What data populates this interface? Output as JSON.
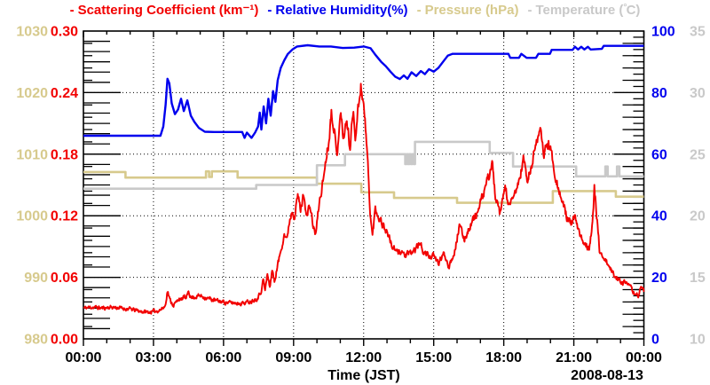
{
  "legend": {
    "items": [
      {
        "id": "scattering",
        "dash": "-",
        "label": "Scattering Coefficient (km⁻¹)",
        "color": "#f20000"
      },
      {
        "id": "humidity",
        "dash": "-",
        "label": "Relative Humidity(%)",
        "color": "#0000ee"
      },
      {
        "id": "pressure",
        "dash": "-",
        "label": "Pressure (hPa)",
        "color": "#d7ca8d"
      },
      {
        "id": "temperature",
        "dash": "-",
        "label_pre": "Temperature (",
        "label_deg": "°",
        "label_post": "C)",
        "color": "#c9c9c9"
      }
    ]
  },
  "chart_data": {
    "type": "line",
    "xlabel": "Time (JST)",
    "date_label": "2008-08-13",
    "grid": {
      "style": "dotted",
      "color": "#000000"
    },
    "x_axis": {
      "range": [
        0,
        24
      ],
      "tick_values": [
        0,
        3,
        6,
        9,
        12,
        15,
        18,
        21,
        24
      ],
      "tick_labels": [
        "00:00",
        "03:00",
        "06:00",
        "09:00",
        "12:00",
        "15:00",
        "18:00",
        "21:00",
        "00:00"
      ],
      "minor_step": 1
    },
    "y_axes": [
      {
        "id": "scattering",
        "label": "Scattering Coefficient (km⁻¹)",
        "side": "left-inner",
        "color": "#f20000",
        "range": [
          0,
          0.3
        ],
        "tick_values": [
          0,
          0.06,
          0.12,
          0.18,
          0.24,
          0.3
        ],
        "tick_labels": [
          "0.00",
          "0.06",
          "0.12",
          "0.18",
          "0.24",
          "0.30"
        ],
        "minor_step": 0.01
      },
      {
        "id": "pressure",
        "label": "Pressure (hPa)",
        "side": "left-outer",
        "color": "#d7ca8d",
        "range": [
          980,
          1030
        ],
        "tick_values": [
          980,
          990,
          1000,
          1010,
          1020,
          1030
        ],
        "tick_labels": [
          "980",
          "990",
          "1000",
          "1010",
          "1020",
          "1030"
        ],
        "minor_step": 2
      },
      {
        "id": "humidity",
        "label": "Relative Humidity(%)",
        "side": "right-inner",
        "color": "#0000ee",
        "range": [
          0,
          100
        ],
        "tick_values": [
          0,
          20,
          40,
          60,
          80,
          100
        ],
        "tick_labels": [
          "0",
          "20",
          "40",
          "60",
          "80",
          "100"
        ],
        "minor_step": 2
      },
      {
        "id": "temperature",
        "label": "Temperature (°C)",
        "side": "right-outer",
        "color": "#c9c9c9",
        "range": [
          10,
          35
        ],
        "tick_values": [
          10,
          15,
          20,
          25,
          30,
          35
        ],
        "tick_labels": [
          "10",
          "15",
          "20",
          "25",
          "30",
          "35"
        ],
        "minor_step": 1
      }
    ],
    "series": [
      {
        "id": "pressure",
        "axis": "pressure",
        "style": "step",
        "color": "#d7ca8d",
        "width": 2.6,
        "points": [
          [
            0,
            1007.1
          ],
          [
            1.8,
            1006.2
          ],
          [
            5.25,
            1007.2
          ],
          [
            5.38,
            1006.3
          ],
          [
            5.5,
            1007.2
          ],
          [
            6.6,
            1006.2
          ],
          [
            10.0,
            1005.2
          ],
          [
            11.9,
            1003.8
          ],
          [
            13.3,
            1002.9
          ],
          [
            16.0,
            1002.1
          ],
          [
            20.1,
            1004.0
          ],
          [
            22.8,
            1003.1
          ],
          [
            24,
            1003.1
          ]
        ]
      },
      {
        "id": "temperature",
        "axis": "temperature",
        "style": "step",
        "color": "#c9c9c9",
        "width": 2.6,
        "points": [
          [
            0,
            22.2
          ],
          [
            7.4,
            22.5
          ],
          [
            10.0,
            24.1
          ],
          [
            11.2,
            25.0
          ],
          [
            13.78,
            24.2
          ],
          [
            13.84,
            25.0
          ],
          [
            13.9,
            24.2
          ],
          [
            13.96,
            25.0
          ],
          [
            14.02,
            24.2
          ],
          [
            14.08,
            25.0
          ],
          [
            14.14,
            24.2
          ],
          [
            14.2,
            26.0
          ],
          [
            17.4,
            25.1
          ],
          [
            18.4,
            24.0
          ],
          [
            21.1,
            23.2
          ],
          [
            22.35,
            24.0
          ],
          [
            22.45,
            23.2
          ],
          [
            22.85,
            24.0
          ],
          [
            22.95,
            23.2
          ],
          [
            24,
            23.2
          ]
        ]
      },
      {
        "id": "humidity",
        "axis": "humidity",
        "style": "line",
        "color": "#0000ee",
        "width": 2.4,
        "points": [
          [
            0,
            66
          ],
          [
            0.5,
            66
          ],
          [
            1,
            66
          ],
          [
            1.5,
            66
          ],
          [
            2,
            66
          ],
          [
            2.5,
            66
          ],
          [
            3,
            66
          ],
          [
            3.3,
            66
          ],
          [
            3.42,
            69
          ],
          [
            3.52,
            76
          ],
          [
            3.6,
            84.5
          ],
          [
            3.68,
            83
          ],
          [
            3.78,
            76.5
          ],
          [
            3.92,
            73
          ],
          [
            4.05,
            74.5
          ],
          [
            4.18,
            78
          ],
          [
            4.3,
            74
          ],
          [
            4.45,
            77.5
          ],
          [
            4.6,
            72.5
          ],
          [
            4.75,
            70.5
          ],
          [
            4.95,
            68.5
          ],
          [
            5.2,
            67.3
          ],
          [
            5.6,
            67.2
          ],
          [
            6.0,
            67.2
          ],
          [
            6.4,
            67.2
          ],
          [
            6.8,
            67.2
          ],
          [
            6.9,
            65.3
          ],
          [
            7.0,
            67
          ],
          [
            7.2,
            65.3
          ],
          [
            7.35,
            67
          ],
          [
            7.48,
            69
          ],
          [
            7.55,
            73.5
          ],
          [
            7.62,
            68
          ],
          [
            7.72,
            75.5
          ],
          [
            7.82,
            70
          ],
          [
            7.92,
            78
          ],
          [
            8.02,
            72.5
          ],
          [
            8.12,
            80.5
          ],
          [
            8.22,
            77
          ],
          [
            8.32,
            84
          ],
          [
            8.45,
            88
          ],
          [
            8.6,
            90.5
          ],
          [
            8.75,
            92.5
          ],
          [
            8.95,
            94
          ],
          [
            9.15,
            95
          ],
          [
            9.6,
            95.4
          ],
          [
            10.1,
            95
          ],
          [
            10.6,
            95
          ],
          [
            11.1,
            94.5
          ],
          [
            11.6,
            94.6
          ],
          [
            12.0,
            95
          ],
          [
            12.3,
            94.4
          ],
          [
            12.5,
            92.3
          ],
          [
            12.75,
            90
          ],
          [
            12.95,
            88.6
          ],
          [
            13.15,
            86.8
          ],
          [
            13.35,
            85.2
          ],
          [
            13.55,
            84.4
          ],
          [
            13.72,
            85.6
          ],
          [
            13.88,
            84.5
          ],
          [
            14.05,
            86.6
          ],
          [
            14.25,
            85.4
          ],
          [
            14.45,
            87
          ],
          [
            14.62,
            86
          ],
          [
            14.8,
            87.6
          ],
          [
            15.0,
            86.8
          ],
          [
            15.2,
            88
          ],
          [
            15.4,
            90
          ],
          [
            15.6,
            92
          ],
          [
            15.8,
            92.6
          ],
          [
            16.4,
            92.6
          ],
          [
            17.0,
            92.6
          ],
          [
            17.6,
            92.6
          ],
          [
            18.2,
            92.6
          ],
          [
            18.28,
            91.3
          ],
          [
            18.65,
            91.3
          ],
          [
            18.75,
            92.6
          ],
          [
            18.98,
            91.3
          ],
          [
            19.38,
            91.3
          ],
          [
            19.48,
            92.6
          ],
          [
            19.98,
            92.6
          ],
          [
            20.05,
            93.9
          ],
          [
            20.5,
            93.9
          ],
          [
            20.95,
            93.9
          ],
          [
            21.05,
            94.9
          ],
          [
            21.18,
            94
          ],
          [
            21.32,
            94.9
          ],
          [
            21.45,
            94
          ],
          [
            21.6,
            94.9
          ],
          [
            21.72,
            94
          ],
          [
            22.2,
            94.2
          ],
          [
            22.28,
            95.2
          ],
          [
            23.0,
            95.2
          ],
          [
            23.5,
            95.2
          ],
          [
            24,
            95.2
          ]
        ]
      },
      {
        "id": "scattering",
        "axis": "scattering",
        "style": "noisy-line",
        "color": "#f20000",
        "width": 1.9,
        "noise": {
          "seed": 11,
          "base": 0.002,
          "scale": 0.04,
          "samples": 1200
        },
        "points": [
          [
            0,
            0.03
          ],
          [
            0.4,
            0.031
          ],
          [
            0.8,
            0.03
          ],
          [
            1.2,
            0.031
          ],
          [
            1.6,
            0.03
          ],
          [
            2.0,
            0.029
          ],
          [
            2.4,
            0.027
          ],
          [
            2.8,
            0.026
          ],
          [
            3.1,
            0.027
          ],
          [
            3.35,
            0.029
          ],
          [
            3.5,
            0.032
          ],
          [
            3.6,
            0.047
          ],
          [
            3.7,
            0.038
          ],
          [
            3.85,
            0.033
          ],
          [
            4.0,
            0.036
          ],
          [
            4.1,
            0.04
          ],
          [
            4.2,
            0.037
          ],
          [
            4.3,
            0.042
          ],
          [
            4.4,
            0.038
          ],
          [
            4.5,
            0.048
          ],
          [
            4.6,
            0.04
          ],
          [
            4.75,
            0.041
          ],
          [
            4.95,
            0.042
          ],
          [
            5.15,
            0.041
          ],
          [
            5.4,
            0.039
          ],
          [
            5.7,
            0.037
          ],
          [
            6.0,
            0.036
          ],
          [
            6.3,
            0.035
          ],
          [
            6.6,
            0.035
          ],
          [
            6.9,
            0.035
          ],
          [
            7.2,
            0.037
          ],
          [
            7.45,
            0.04
          ],
          [
            7.6,
            0.046
          ],
          [
            7.7,
            0.058
          ],
          [
            7.78,
            0.047
          ],
          [
            7.88,
            0.063
          ],
          [
            7.98,
            0.05
          ],
          [
            8.08,
            0.068
          ],
          [
            8.18,
            0.055
          ],
          [
            8.28,
            0.068
          ],
          [
            8.38,
            0.078
          ],
          [
            8.5,
            0.092
          ],
          [
            8.6,
            0.103
          ],
          [
            8.7,
            0.096
          ],
          [
            8.82,
            0.115
          ],
          [
            8.95,
            0.127
          ],
          [
            9.05,
            0.12
          ],
          [
            9.18,
            0.14
          ],
          [
            9.3,
            0.126
          ],
          [
            9.45,
            0.143
          ],
          [
            9.55,
            0.118
          ],
          [
            9.7,
            0.13
          ],
          [
            9.85,
            0.108
          ],
          [
            9.95,
            0.102
          ],
          [
            10.1,
            0.133
          ],
          [
            10.25,
            0.152
          ],
          [
            10.4,
            0.178
          ],
          [
            10.5,
            0.192
          ],
          [
            10.62,
            0.222
          ],
          [
            10.72,
            0.21
          ],
          [
            10.85,
            0.176
          ],
          [
            11.0,
            0.224
          ],
          [
            11.12,
            0.196
          ],
          [
            11.28,
            0.212
          ],
          [
            11.42,
            0.186
          ],
          [
            11.55,
            0.224
          ],
          [
            11.65,
            0.198
          ],
          [
            11.78,
            0.228
          ],
          [
            11.88,
            0.248
          ],
          [
            11.98,
            0.232
          ],
          [
            12.08,
            0.205
          ],
          [
            12.18,
            0.17
          ],
          [
            12.28,
            0.122
          ],
          [
            12.38,
            0.1
          ],
          [
            12.5,
            0.128
          ],
          [
            12.62,
            0.12
          ],
          [
            12.75,
            0.115
          ],
          [
            12.9,
            0.108
          ],
          [
            13.05,
            0.102
          ],
          [
            13.2,
            0.091
          ],
          [
            13.4,
            0.084
          ],
          [
            13.6,
            0.086
          ],
          [
            13.8,
            0.081
          ],
          [
            14.0,
            0.083
          ],
          [
            14.2,
            0.087
          ],
          [
            14.4,
            0.093
          ],
          [
            14.6,
            0.084
          ],
          [
            14.8,
            0.081
          ],
          [
            15.0,
            0.08
          ],
          [
            15.2,
            0.074
          ],
          [
            15.45,
            0.083
          ],
          [
            15.65,
            0.071
          ],
          [
            15.9,
            0.086
          ],
          [
            16.1,
            0.11
          ],
          [
            16.3,
            0.097
          ],
          [
            16.5,
            0.107
          ],
          [
            16.7,
            0.117
          ],
          [
            16.9,
            0.124
          ],
          [
            17.1,
            0.139
          ],
          [
            17.3,
            0.154
          ],
          [
            17.5,
            0.172
          ],
          [
            17.65,
            0.136
          ],
          [
            17.85,
            0.12
          ],
          [
            18.05,
            0.149
          ],
          [
            18.25,
            0.127
          ],
          [
            18.45,
            0.14
          ],
          [
            18.65,
            0.153
          ],
          [
            18.85,
            0.176
          ],
          [
            19.0,
            0.154
          ],
          [
            19.2,
            0.167
          ],
          [
            19.4,
            0.196
          ],
          [
            19.55,
            0.204
          ],
          [
            19.7,
            0.179
          ],
          [
            19.85,
            0.191
          ],
          [
            20.0,
            0.186
          ],
          [
            20.2,
            0.161
          ],
          [
            20.45,
            0.137
          ],
          [
            20.7,
            0.119
          ],
          [
            20.9,
            0.111
          ],
          [
            21.05,
            0.119
          ],
          [
            21.25,
            0.1
          ],
          [
            21.45,
            0.094
          ],
          [
            21.65,
            0.089
          ],
          [
            21.8,
            0.112
          ],
          [
            21.88,
            0.146
          ],
          [
            21.98,
            0.12
          ],
          [
            22.1,
            0.086
          ],
          [
            22.3,
            0.079
          ],
          [
            22.55,
            0.068
          ],
          [
            22.8,
            0.06
          ],
          [
            23.05,
            0.056
          ],
          [
            23.3,
            0.053
          ],
          [
            23.55,
            0.046
          ],
          [
            23.75,
            0.042
          ],
          [
            23.9,
            0.051
          ],
          [
            24,
            0.047
          ]
        ]
      }
    ]
  }
}
